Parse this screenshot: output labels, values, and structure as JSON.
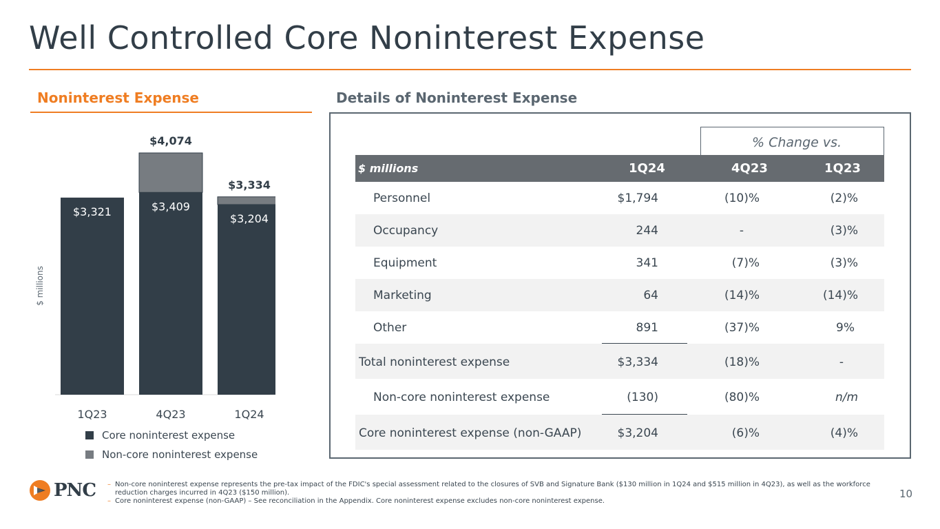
{
  "slide": {
    "title": "Well Controlled Core Noninterest Expense",
    "page_number": "10"
  },
  "left_panel": {
    "heading": "Noninterest Expense"
  },
  "chart_data": {
    "type": "bar",
    "stacked": true,
    "categories": [
      "1Q23",
      "4Q23",
      "1Q24"
    ],
    "series": [
      {
        "name": "Core noninterest expense",
        "color": "#323e48",
        "values": [
          3321,
          3409,
          3204
        ],
        "labels": [
          "$3,321",
          "$3,409",
          "$3,204"
        ]
      },
      {
        "name": "Non-core noninterest expense",
        "color": "#777c81",
        "values": [
          0,
          665,
          130
        ]
      }
    ],
    "totals": [
      null,
      4074,
      3334
    ],
    "total_labels": [
      "",
      "$4,074",
      "$3,334"
    ],
    "ylabel": "$ millions",
    "ylim": [
      0,
      4074
    ]
  },
  "legend": {
    "core": "Core noninterest expense",
    "noncore": "Non-core noninterest expense"
  },
  "right_panel": {
    "heading": "Details of Noninterest Expense",
    "pct_change_label": "% Change vs.",
    "header": {
      "units": "$ millions",
      "col1": "1Q24",
      "col2": "4Q23",
      "col3": "1Q23"
    },
    "rows": [
      {
        "label": "Personnel",
        "v1": "$1,794",
        "v2": "(10)%",
        "v3": "(2)%"
      },
      {
        "label": "Occupancy",
        "v1": "244",
        "v2": "-",
        "v3": "(3)%"
      },
      {
        "label": "Equipment",
        "v1": "341",
        "v2": "(7)%",
        "v3": "(3)%"
      },
      {
        "label": "Marketing",
        "v1": "64",
        "v2": "(14)%",
        "v3": "(14)%"
      },
      {
        "label": "Other",
        "v1": "891",
        "v2": "(37)%",
        "v3": "9%"
      },
      {
        "label": "Total noninterest expense",
        "v1": "$3,334",
        "v2": "(18)%",
        "v3": "-"
      },
      {
        "label": "Non-core noninterest expense",
        "v1": "(130)",
        "v2": "(80)%",
        "v3": "n/m"
      },
      {
        "label": "Core noninterest expense (non-GAAP)",
        "v1": "$3,204",
        "v2": "(6)%",
        "v3": "(4)%"
      }
    ]
  },
  "footer": {
    "logo_text": "PNC",
    "brand_color": "#ef7d22",
    "footnotes": [
      "Non-core noninterest expense represents the pre-tax impact of the FDIC's special assessment related to the closures of SVB and Signature Bank ($130 million in 1Q24 and $515 million in 4Q23), as well as the workforce reduction charges incurred in 4Q23 ($150 million).",
      "Core noninterest expense (non-GAAP) – See reconciliation in the Appendix. Core noninterest expense excludes non-core noninterest expense."
    ]
  }
}
